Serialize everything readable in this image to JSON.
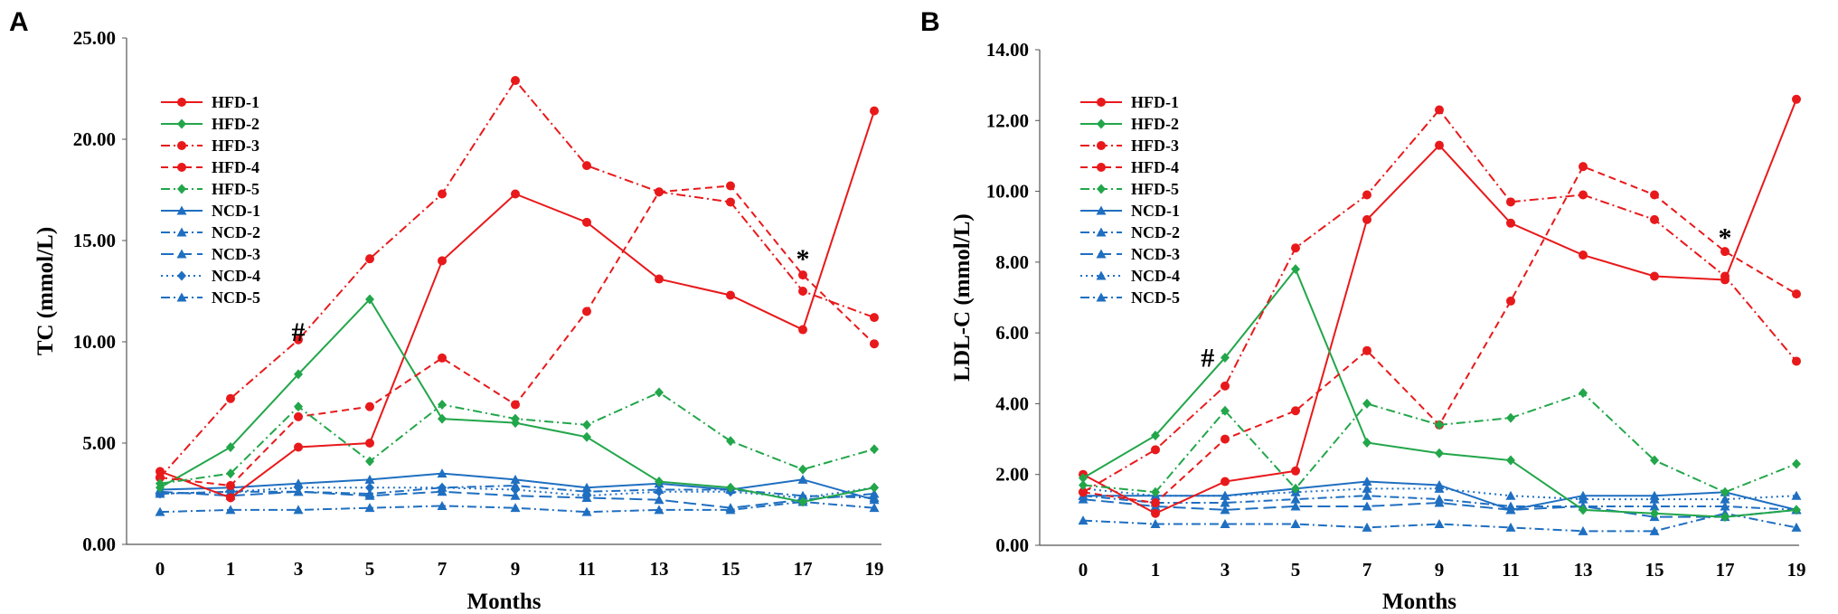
{
  "figure": {
    "panels": [
      "A",
      "B"
    ]
  },
  "colors": {
    "HFD": "#e8191b",
    "HFD_green": "#22a64a",
    "NCD": "#1f6fc1"
  },
  "chart_data": [
    {
      "type": "line",
      "panel": "A",
      "title": "",
      "xlabel": "Months",
      "ylabel": "TC (mmol/L)",
      "x": [
        0,
        1,
        3,
        5,
        7,
        9,
        11,
        13,
        15,
        17,
        19
      ],
      "ylim": [
        0,
        25
      ],
      "yticks": [
        "0.00",
        "5.00",
        "10.00",
        "15.00",
        "20.00",
        "25.00"
      ],
      "legend_position": "top-left",
      "annotations": [
        {
          "text": "#",
          "x": 3,
          "y": 10.5
        },
        {
          "text": "*",
          "x": 17,
          "y": 14.1
        }
      ],
      "series": [
        {
          "name": "HFD-1",
          "style": "solid",
          "color": "#e8191b",
          "marker": "circle",
          "values": [
            3.6,
            2.3,
            4.8,
            5.0,
            14.0,
            17.3,
            15.9,
            13.1,
            12.3,
            10.6,
            21.4
          ]
        },
        {
          "name": "HFD-2",
          "style": "solid",
          "color": "#22a64a",
          "marker": "diamond",
          "values": [
            2.8,
            4.8,
            8.4,
            12.1,
            6.2,
            6.0,
            5.3,
            3.1,
            2.8,
            2.1,
            2.8
          ]
        },
        {
          "name": "HFD-3",
          "style": "dashdot",
          "color": "#e8191b",
          "marker": "circle",
          "values": [
            3.3,
            7.2,
            10.1,
            14.1,
            17.3,
            22.9,
            18.7,
            17.4,
            16.9,
            12.5,
            11.2
          ]
        },
        {
          "name": "HFD-4",
          "style": "dashed",
          "color": "#e8191b",
          "marker": "circle",
          "values": [
            3.3,
            2.9,
            6.3,
            6.8,
            9.2,
            6.9,
            11.5,
            17.4,
            17.7,
            13.3,
            9.9
          ]
        },
        {
          "name": "HFD-5",
          "style": "dashdot",
          "color": "#22a64a",
          "marker": "diamond",
          "values": [
            3.0,
            3.5,
            6.8,
            4.1,
            6.9,
            6.2,
            5.9,
            7.5,
            5.1,
            3.7,
            4.7
          ]
        },
        {
          "name": "NCD-1",
          "style": "solid",
          "color": "#1f6fc1",
          "marker": "triangle",
          "values": [
            2.7,
            2.8,
            3.0,
            3.2,
            3.5,
            3.2,
            2.8,
            3.0,
            2.7,
            3.2,
            2.2
          ]
        },
        {
          "name": "NCD-2",
          "style": "dashdot",
          "color": "#1f6fc1",
          "marker": "triangle",
          "values": [
            2.5,
            2.6,
            2.6,
            2.5,
            2.8,
            2.9,
            2.6,
            2.7,
            2.7,
            2.4,
            2.3
          ]
        },
        {
          "name": "NCD-3",
          "style": "longdash",
          "color": "#1f6fc1",
          "marker": "triangle",
          "values": [
            2.6,
            2.4,
            2.6,
            2.4,
            2.6,
            2.4,
            2.3,
            2.2,
            1.8,
            2.2,
            2.5
          ]
        },
        {
          "name": "NCD-4",
          "style": "dotted",
          "color": "#1f6fc1",
          "marker": "diamond",
          "values": [
            2.5,
            2.6,
            2.8,
            2.8,
            2.8,
            2.7,
            2.4,
            2.6,
            2.6,
            2.3,
            2.8
          ]
        },
        {
          "name": "NCD-5",
          "style": "dashdot",
          "color": "#1f6fc1",
          "marker": "triangle",
          "values": [
            1.6,
            1.7,
            1.7,
            1.8,
            1.9,
            1.8,
            1.6,
            1.7,
            1.7,
            2.1,
            1.8
          ]
        }
      ]
    },
    {
      "type": "line",
      "panel": "B",
      "title": "",
      "xlabel": "Months",
      "ylabel": "LDL-C (mmol/L)",
      "x": [
        0,
        1,
        3,
        5,
        7,
        9,
        11,
        13,
        15,
        17,
        19
      ],
      "ylim": [
        0,
        14
      ],
      "yticks": [
        "0.00",
        "2.00",
        "4.00",
        "6.00",
        "8.00",
        "10.00",
        "12.00",
        "14.00"
      ],
      "legend_position": "top-left",
      "annotations": [
        {
          "text": "#",
          "x": 2.5,
          "y": 5.3
        },
        {
          "text": "*",
          "x": 17,
          "y": 8.7
        }
      ],
      "series": [
        {
          "name": "HFD-1",
          "style": "solid",
          "color": "#e8191b",
          "marker": "circle",
          "values": [
            2.0,
            0.9,
            1.8,
            2.1,
            9.2,
            11.3,
            9.1,
            8.2,
            7.6,
            7.5,
            12.6
          ]
        },
        {
          "name": "HFD-2",
          "style": "solid",
          "color": "#22a64a",
          "marker": "diamond",
          "values": [
            1.9,
            3.1,
            5.3,
            7.8,
            2.9,
            2.6,
            2.4,
            1.0,
            0.9,
            0.8,
            1.0
          ]
        },
        {
          "name": "HFD-3",
          "style": "dashdot",
          "color": "#e8191b",
          "marker": "circle",
          "values": [
            1.5,
            2.7,
            4.5,
            8.4,
            9.9,
            12.3,
            9.7,
            9.9,
            9.2,
            7.6,
            5.2
          ]
        },
        {
          "name": "HFD-4",
          "style": "dashed",
          "color": "#e8191b",
          "marker": "circle",
          "values": [
            1.5,
            1.2,
            3.0,
            3.8,
            5.5,
            3.4,
            6.9,
            10.7,
            9.9,
            8.3,
            7.1
          ]
        },
        {
          "name": "HFD-5",
          "style": "dashdot",
          "color": "#22a64a",
          "marker": "diamond",
          "values": [
            1.7,
            1.5,
            3.8,
            1.6,
            4.0,
            3.4,
            3.6,
            4.3,
            2.4,
            1.5,
            2.3
          ]
        },
        {
          "name": "NCD-1",
          "style": "solid",
          "color": "#1f6fc1",
          "marker": "triangle",
          "values": [
            1.4,
            1.4,
            1.4,
            1.6,
            1.8,
            1.7,
            1.0,
            1.4,
            1.4,
            1.5,
            1.0
          ]
        },
        {
          "name": "NCD-2",
          "style": "dashdot",
          "color": "#1f6fc1",
          "marker": "triangle",
          "values": [
            1.4,
            1.2,
            1.2,
            1.3,
            1.4,
            1.3,
            1.1,
            1.1,
            1.1,
            1.1,
            1.0
          ]
        },
        {
          "name": "NCD-3",
          "style": "longdash",
          "color": "#1f6fc1",
          "marker": "triangle",
          "values": [
            1.3,
            1.1,
            1.0,
            1.1,
            1.1,
            1.2,
            1.0,
            1.1,
            0.8,
            0.8,
            1.0
          ]
        },
        {
          "name": "NCD-4",
          "style": "dotted",
          "color": "#1f6fc1",
          "marker": "triangle",
          "values": [
            1.6,
            1.4,
            1.4,
            1.5,
            1.6,
            1.6,
            1.4,
            1.3,
            1.3,
            1.3,
            1.4
          ]
        },
        {
          "name": "NCD-5",
          "style": "dashdot",
          "color": "#1f6fc1",
          "marker": "triangle",
          "values": [
            0.7,
            0.6,
            0.6,
            0.6,
            0.5,
            0.6,
            0.5,
            0.4,
            0.4,
            0.9,
            0.5
          ]
        }
      ]
    }
  ]
}
